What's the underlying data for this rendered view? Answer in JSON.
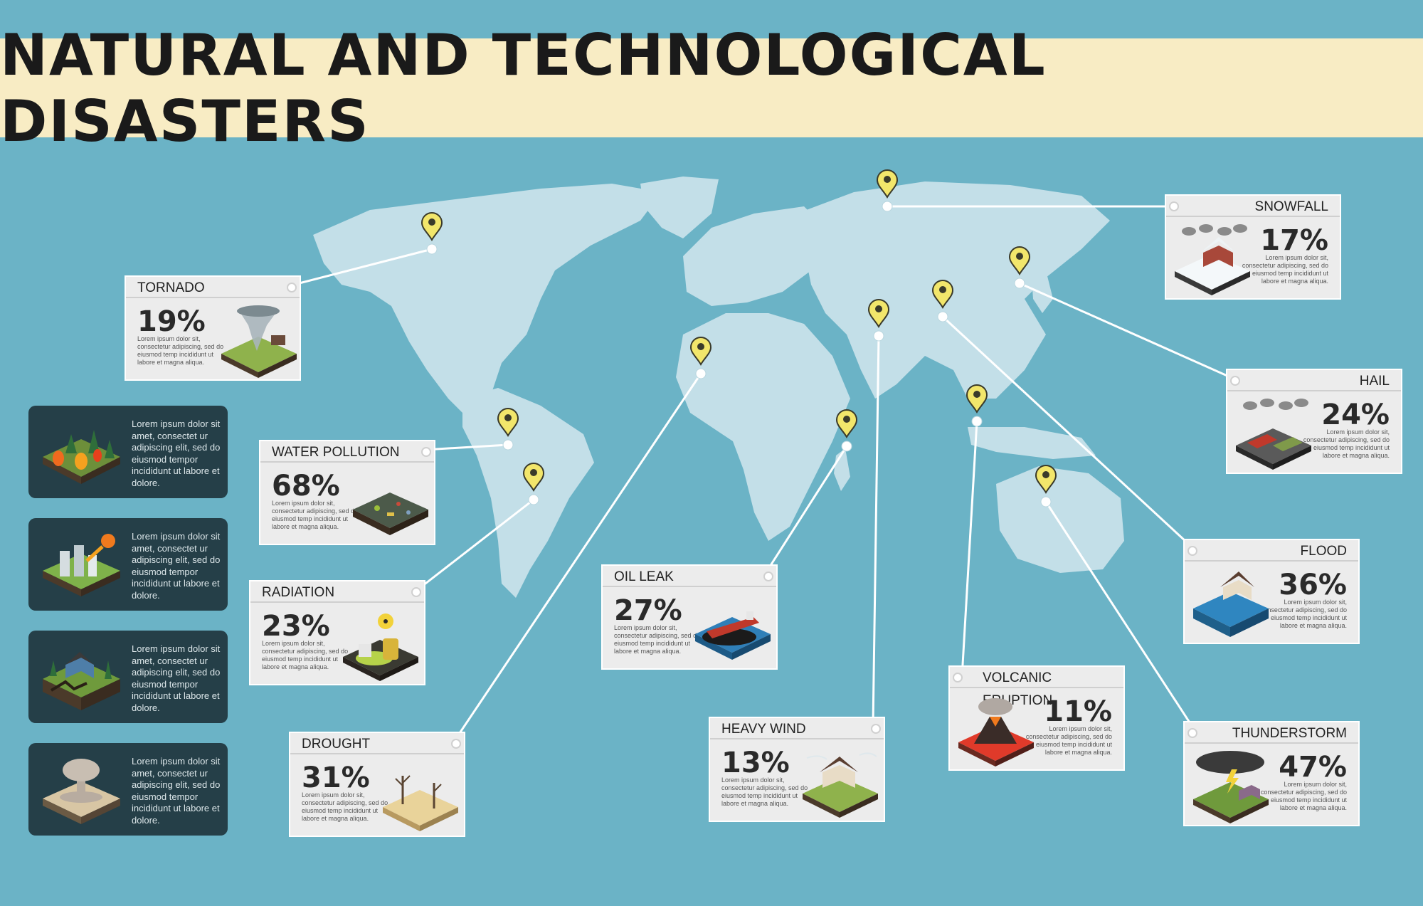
{
  "title": "NATURAL AND TECHNOLOGICAL DISASTERS",
  "colors": {
    "background": "#6bb3c6",
    "banner": "#f8ecc4",
    "continents": "#c3dfe8",
    "pin": "#f2e66b",
    "card": "#ececec",
    "dark_panel": "#253f48"
  },
  "lorem_short": "Lorem ipsum dolor sit, consectetur adipiscing, sed do eiusmod temp incididunt ut labore et magna aliqua.",
  "cards": {
    "tornado": {
      "label": "TORNADO",
      "pct": "19%",
      "icon": "tornado-icon"
    },
    "water_pollution": {
      "label": "WATER POLLUTION",
      "pct": "68%",
      "icon": "water-pollution-icon"
    },
    "radiation": {
      "label": "RADIATION",
      "pct": "23%",
      "icon": "radiation-icon"
    },
    "drought": {
      "label": "DROUGHT",
      "pct": "31%",
      "icon": "drought-icon"
    },
    "oil_leak": {
      "label": "OIL LEAK",
      "pct": "27%",
      "icon": "oil-tanker-icon"
    },
    "heavy_wind": {
      "label": "HEAVY WIND",
      "pct": "13%",
      "icon": "heavy-wind-icon"
    },
    "volcanic_eruption": {
      "label": "VOLCANIC ERUPTION",
      "pct": "11%",
      "icon": "volcano-icon"
    },
    "snowfall": {
      "label": "SNOWFALL",
      "pct": "17%",
      "icon": "snowfall-icon"
    },
    "hail": {
      "label": "HAIL",
      "pct": "24%",
      "icon": "hail-icon"
    },
    "flood": {
      "label": "FLOOD",
      "pct": "36%",
      "icon": "flood-icon"
    },
    "thunderstorm": {
      "label": "THUNDERSTORM",
      "pct": "47%",
      "icon": "thunderstorm-icon"
    }
  },
  "side_panels": [
    {
      "text": "Lorem ipsum dolor sit amet, consectet ur adipiscing elit, sed do eiusmod tempor incididunt ut labore et dolore.",
      "icon": "forest-fire-icon"
    },
    {
      "text": "Lorem ipsum dolor sit amet, consectet ur adipiscing elit, sed do eiusmod tempor incididunt ut labore et dolore.",
      "icon": "meteor-icon"
    },
    {
      "text": "Lorem ipsum dolor sit amet, consectet ur adipiscing elit, sed do eiusmod tempor incididunt ut labore et dolore.",
      "icon": "earthquake-icon"
    },
    {
      "text": "Lorem ipsum dolor sit amet, consectet ur adipiscing elit, sed do eiusmod tempor incididunt ut labore et dolore.",
      "icon": "explosion-icon"
    }
  ]
}
